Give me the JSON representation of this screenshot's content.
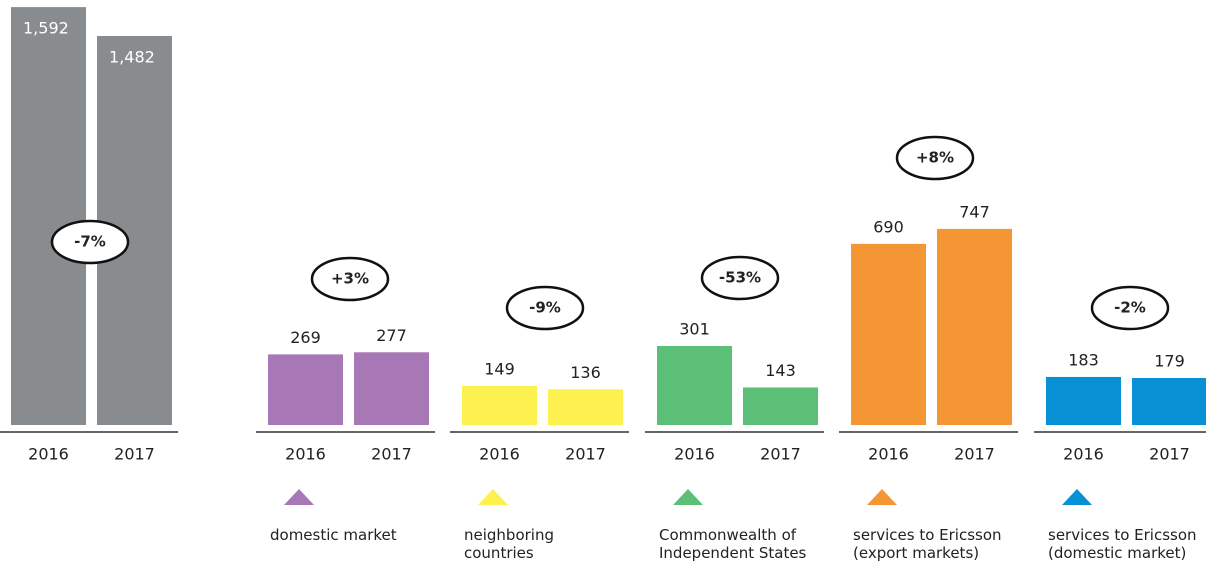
{
  "chart_data": {
    "type": "bar",
    "categories": [
      "2016",
      "2017"
    ],
    "ylim": [
      0,
      1600
    ],
    "series": [
      {
        "color": "#898c8e",
        "values": [
          1592,
          1482
        ],
        "value_labels": [
          "1,592",
          "1,482"
        ],
        "change": "-7%"
      },
      {
        "name": "domestic market",
        "color": "#a877b5",
        "values": [
          269,
          277
        ],
        "change": "+3%"
      },
      {
        "name": "neighboring\ncountries",
        "color": "#fdf14f",
        "values": [
          149,
          136
        ],
        "change": "-9%"
      },
      {
        "name": "Commonwealth of\nIndependent States",
        "color": "#5bbf78",
        "values": [
          301,
          143
        ],
        "change": "-53%"
      },
      {
        "name": "services to Ericsson\n(export markets)",
        "color": "#f49634",
        "values": [
          690,
          747
        ],
        "change": "+8%"
      },
      {
        "name": "services to Ericsson\n(domestic market)",
        "color": "#0790d4",
        "values": [
          183,
          179
        ],
        "change": "-2%"
      }
    ]
  }
}
